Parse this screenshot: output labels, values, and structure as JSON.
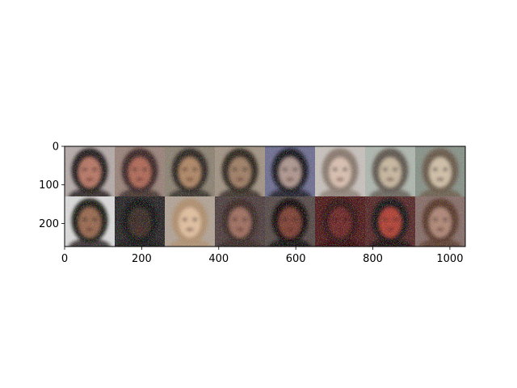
{
  "figure": {
    "description_free": true,
    "image_grid": {
      "rows": 2,
      "cols": 8,
      "tile_size_units": 130,
      "tiles": [
        {
          "bg": "#9a8c88",
          "hair": "#1a1412",
          "face": "#b87866",
          "tone": "#e8e4e6"
        },
        {
          "bg": "#7a5f55",
          "hair": "#3a2420",
          "face": "#b06a58",
          "tone": "#d8c8c4"
        },
        {
          "bg": "#6e6455",
          "hair": "#2a241e",
          "face": "#b08866",
          "tone": "#c8c0b0"
        },
        {
          "bg": "#887866",
          "hair": "#2a2018",
          "face": "#a08066",
          "tone": "#d0c8c0"
        },
        {
          "bg": "#303060",
          "hair": "#0a0a18",
          "face": "#b09890",
          "tone": "#e8e8f0"
        },
        {
          "bg": "#b0a8a0",
          "hair": "#8a7a70",
          "face": "#d8c0b0",
          "tone": "#f0f0f0"
        },
        {
          "bg": "#909890",
          "hair": "#605850",
          "face": "#c8b8a0",
          "tone": "#e8f0e8"
        },
        {
          "bg": "#5a6a60",
          "hair": "#6a5a48",
          "face": "#d0c0a8",
          "tone": "#e0e0d8"
        },
        {
          "bg": "#c8c8c8",
          "hair": "#181410",
          "face": "#9a6a50",
          "tone": "#f8f8f8"
        },
        {
          "bg": "#1a1a20",
          "hair": "#101010",
          "face": "#3a2a20",
          "tone": "#403830"
        },
        {
          "bg": "#908070",
          "hair": "#b09070",
          "face": "#e0c0a0",
          "tone": "#f0e8e0"
        },
        {
          "bg": "#3a3030",
          "hair": "#3a2820",
          "face": "#a07060",
          "tone": "#786060"
        },
        {
          "bg": "#201818",
          "hair": "#080606",
          "face": "#804030",
          "tone": "#c0a8a0"
        },
        {
          "bg": "#4a1010",
          "hair": "#300808",
          "face": "#702020",
          "tone": "#602020"
        },
        {
          "bg": "#201818",
          "hair": "#0a0808",
          "face": "#b04030",
          "tone": "#c04040"
        },
        {
          "bg": "#6a5048",
          "hair": "#5a3828",
          "face": "#b08878",
          "tone": "#c0a8a8"
        }
      ]
    },
    "x_axis": {
      "range": [
        0,
        1040
      ],
      "ticks": [
        0,
        200,
        400,
        600,
        800,
        1000
      ],
      "tick_labels": [
        "0",
        "200",
        "400",
        "600",
        "800",
        "1000"
      ]
    },
    "y_axis": {
      "range": [
        0,
        260
      ],
      "inverted": true,
      "ticks": [
        0,
        100,
        200
      ],
      "tick_labels": [
        "0",
        "100",
        "200"
      ]
    }
  }
}
